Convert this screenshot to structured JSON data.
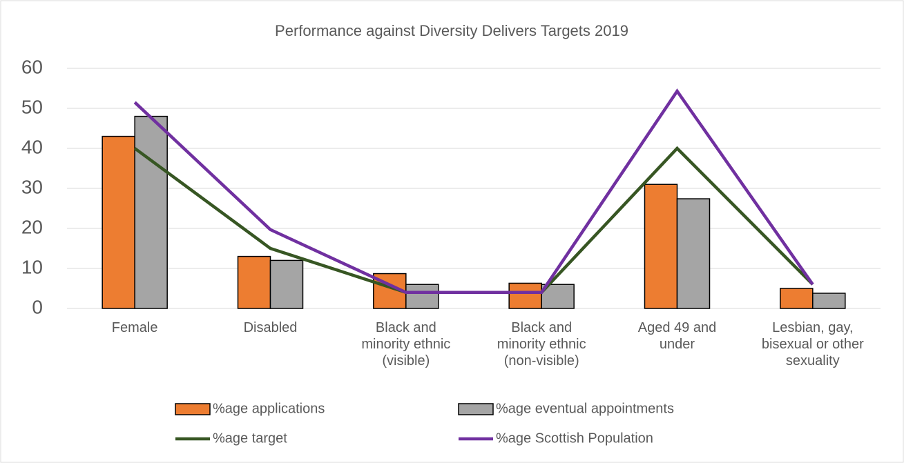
{
  "chart_data": {
    "type": "bar_line",
    "title": "Performance against Diversity Delivers Targets 2019",
    "categories": [
      "Female",
      "Disabled",
      "Black and minority ethnic (visible)",
      "Black and minority ethnic (non-visible)",
      "Aged 49 and under",
      "Lesbian, gay, bisexual or other sexuality"
    ],
    "series": [
      {
        "name": "%age applications",
        "type": "bar",
        "color": "#ed7d31",
        "values": [
          43,
          13,
          8.7,
          6.3,
          31,
          5
        ]
      },
      {
        "name": "%age eventual appointments",
        "type": "bar",
        "color": "#a5a5a5",
        "values": [
          48,
          12,
          6,
          6,
          27.4,
          3.8
        ]
      },
      {
        "name": "%age target",
        "type": "line",
        "color": "#375623",
        "values": [
          40,
          15,
          4,
          4,
          40,
          6
        ]
      },
      {
        "name": "%age Scottish Population",
        "type": "line",
        "color": "#7030a0",
        "values": [
          51.5,
          19.7,
          4,
          4,
          54.3,
          6
        ]
      }
    ],
    "ylim": [
      0,
      60
    ],
    "yticks": [
      0,
      10,
      20,
      30,
      40,
      50,
      60
    ],
    "grid": true
  }
}
